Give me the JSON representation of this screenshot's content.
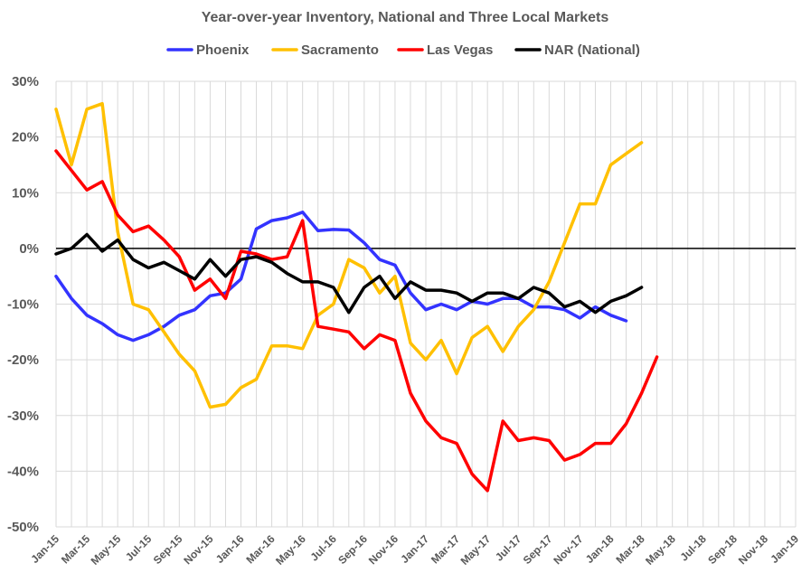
{
  "chart_data": {
    "type": "line",
    "title": "Year-over-year Inventory, National and Three Local Markets",
    "xlabel": "",
    "ylabel": "",
    "ylim": [
      -50,
      30
    ],
    "yticks": [
      "30%",
      "20%",
      "10%",
      "0%",
      "-10%",
      "-20%",
      "-30%",
      "-40%",
      "-50%"
    ],
    "ytick_values": [
      30,
      20,
      10,
      0,
      -10,
      -20,
      -30,
      -40,
      -50
    ],
    "xticks": [
      "Jan-15",
      "Mar-15",
      "May-15",
      "Jul-15",
      "Sep-15",
      "Nov-15",
      "Jan-16",
      "Mar-16",
      "May-16",
      "Jul-16",
      "Sep-16",
      "Nov-16",
      "Jan-17",
      "Mar-17",
      "May-17",
      "Jul-17",
      "Sep-17",
      "Nov-17",
      "Jan-18",
      "Mar-18",
      "May-18",
      "Jul-18",
      "Sep-18",
      "Nov-18",
      "Jan-19"
    ],
    "x_start": "Jan-15",
    "x_months": 48,
    "grid": true,
    "legend_position": "top",
    "series": [
      {
        "name": "Phoenix",
        "color": "#3333ff",
        "values": [
          -5,
          -9,
          -12,
          -13.5,
          -15.5,
          -16.5,
          -15.5,
          -14,
          -12,
          -11,
          -8.5,
          -8,
          -5.5,
          3.5,
          5,
          5.5,
          6.5,
          3.2,
          3.4,
          3.3,
          1,
          -2,
          -3,
          -8,
          -11,
          -10,
          -11,
          -9.5,
          -10,
          -9,
          -9,
          -10.5,
          -10.5,
          -11,
          -12.5,
          -10.5,
          -12,
          -13
        ]
      },
      {
        "name": "Sacramento",
        "color": "#ffc000",
        "values": [
          25,
          15,
          25,
          26,
          3,
          -10,
          -11,
          -15,
          -19,
          -22,
          -28.5,
          -28,
          -25,
          -23.5,
          -17.5,
          -17.5,
          -18,
          -12,
          -10,
          -2,
          -3.5,
          -8,
          -5,
          -17,
          -20,
          -16.5,
          -22.5,
          -16,
          -14,
          -18.5,
          -14,
          -11,
          -6,
          1,
          8,
          8,
          15,
          17,
          19
        ]
      },
      {
        "name": "Las Vegas",
        "color": "#ff0000",
        "values": [
          17.5,
          14,
          10.5,
          12,
          6,
          3,
          4,
          1.5,
          -1.5,
          -7.5,
          -5.5,
          -9,
          -0.5,
          -1,
          -2,
          -1.5,
          5,
          -14,
          -14.5,
          -15,
          -18,
          -15.5,
          -16.5,
          -26,
          -31,
          -34,
          -35,
          -40.5,
          -43.5,
          -31,
          -34.5,
          -34,
          -34.5,
          -38,
          -37,
          -35,
          -35,
          -31.5,
          -26,
          -19.5
        ]
      },
      {
        "name": "NAR (National)",
        "color": "#000000",
        "values": [
          -1,
          0,
          2.5,
          -0.5,
          1.5,
          -2,
          -3.5,
          -2.5,
          -4,
          -5.5,
          -2,
          -5,
          -2,
          -1.5,
          -2.5,
          -4.5,
          -6,
          -6,
          -7,
          -11.5,
          -7,
          -5,
          -9,
          -6,
          -7.5,
          -7.5,
          -8,
          -9.5,
          -8,
          -8,
          -9,
          -7,
          -8,
          -10.5,
          -9.5,
          -11.5,
          -9.5,
          -8.5,
          -7
        ]
      }
    ]
  }
}
